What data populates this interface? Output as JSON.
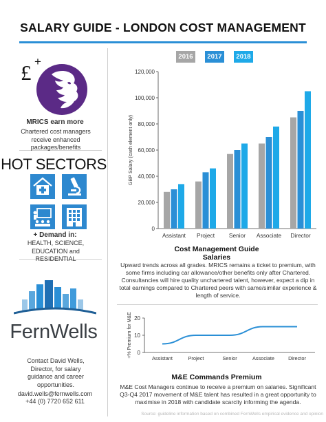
{
  "page": {
    "title": "SALARY GUIDE - LONDON COST MANAGEMENT",
    "source": "Source: guideline information based on combined FernWells empirical evidence and opinion"
  },
  "sidebar": {
    "pound_symbol": "£",
    "plus_symbol": "+",
    "mrics_heading": "MRICS earn more",
    "mrics_text": "Chartered cost managers receive enhanced packages/benefits",
    "hot_sectors_title": "HOT SECTORS",
    "demand_heading": "+ Demand in:",
    "demand_text": "HEALTH, SCIENCE, EDUCATION and RESIDENTIAL",
    "brand_name": "FernWells",
    "contact_text": "Contact David Wells, Director, for salary guidance and career opportunities.",
    "email": "david.wells@fernwells.com",
    "phone": "+44 (0) 7720 652 611",
    "icons": [
      "hospital-icon",
      "microscope-icon",
      "classroom-icon",
      "residential-building-icon"
    ]
  },
  "colors": {
    "accent": "#2a8fd6",
    "mrics_purple": "#5b2a86",
    "tile_blue": "#2d88cf",
    "series_2016": "#a6a6a6",
    "series_2017": "#2a8fd6",
    "series_2018": "#1ea9e8"
  },
  "chart_data": [
    {
      "type": "bar",
      "title": "Cost Management Guide Salaries",
      "ylabel": "GBP Salary (cash element only)",
      "xlabel": "",
      "ylim": [
        0,
        120000
      ],
      "yticks": [
        "0",
        "20,000",
        "40,000",
        "60,000",
        "80,000",
        "100,000",
        "120,000"
      ],
      "legend_position": "top",
      "categories": [
        "Assistant",
        "Project",
        "Senior",
        "Associate",
        "Director"
      ],
      "series": [
        {
          "name": "2016",
          "values": [
            28000,
            36000,
            57000,
            65000,
            85000
          ]
        },
        {
          "name": "2017",
          "values": [
            30000,
            43000,
            60000,
            70000,
            90000
          ]
        },
        {
          "name": "2018",
          "values": [
            34000,
            46000,
            65000,
            78000,
            105000
          ]
        }
      ],
      "description": "Upward trends across all grades. MRICS remains a ticket to premium, with some firms including car allowance/other benefits only after Chartered. Consultancies will hire quality unchartered talent, however, expect a dip in total earnings compared to Chartered peers with same/similar experience & length of service."
    },
    {
      "type": "line",
      "title": "M&E Commands Premium",
      "ylabel": "+% Premium for M&E",
      "ylim": [
        0,
        20
      ],
      "yticks": [
        "0",
        "10",
        "20"
      ],
      "categories": [
        "Assistant",
        "Project",
        "Senior",
        "Associate",
        "Director"
      ],
      "values": [
        5,
        10,
        10,
        15,
        15
      ],
      "description": "M&E Cost Managers continue to receive a premium on salaries. Significant Q3-Q4 2017 movement of M&E talent has resulted in a great opportunity to maximise in 2018 with candidate scarcity informing the agenda."
    }
  ]
}
